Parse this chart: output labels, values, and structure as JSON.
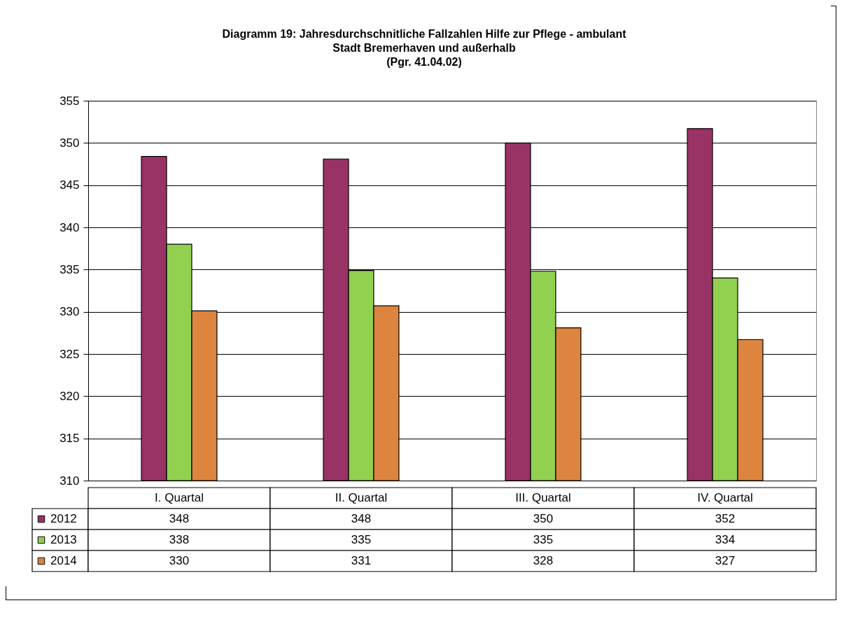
{
  "chart_data": {
    "type": "bar",
    "title": "Diagramm 19: Jahresdurchschnitliche  Fallzahlen  Hilfe zur Pflege - ambulant\nStadt Bremerhaven und außerhalb\n(Pgr. 41.04.02)",
    "categories": [
      "I. Quartal",
      "II. Quartal",
      "III. Quartal",
      "IV. Quartal"
    ],
    "series": [
      {
        "name": "2012",
        "color": "#993366",
        "values": [
          348.4,
          348.1,
          350.0,
          351.7
        ],
        "value_labels": [
          "348",
          "348",
          "350",
          "352"
        ]
      },
      {
        "name": "2013",
        "color": "#92d050",
        "values": [
          338.0,
          334.9,
          334.8,
          334.0
        ],
        "value_labels": [
          "338",
          "335",
          "335",
          "334"
        ]
      },
      {
        "name": "2014",
        "color": "#dd843f",
        "values": [
          330.1,
          330.7,
          328.1,
          326.7
        ],
        "value_labels": [
          "330",
          "331",
          "328",
          "327"
        ]
      }
    ],
    "ylim": [
      310,
      355
    ],
    "yticks": [
      310,
      315,
      320,
      325,
      330,
      335,
      340,
      345,
      350,
      355
    ],
    "grid": "y",
    "legend": "left"
  }
}
